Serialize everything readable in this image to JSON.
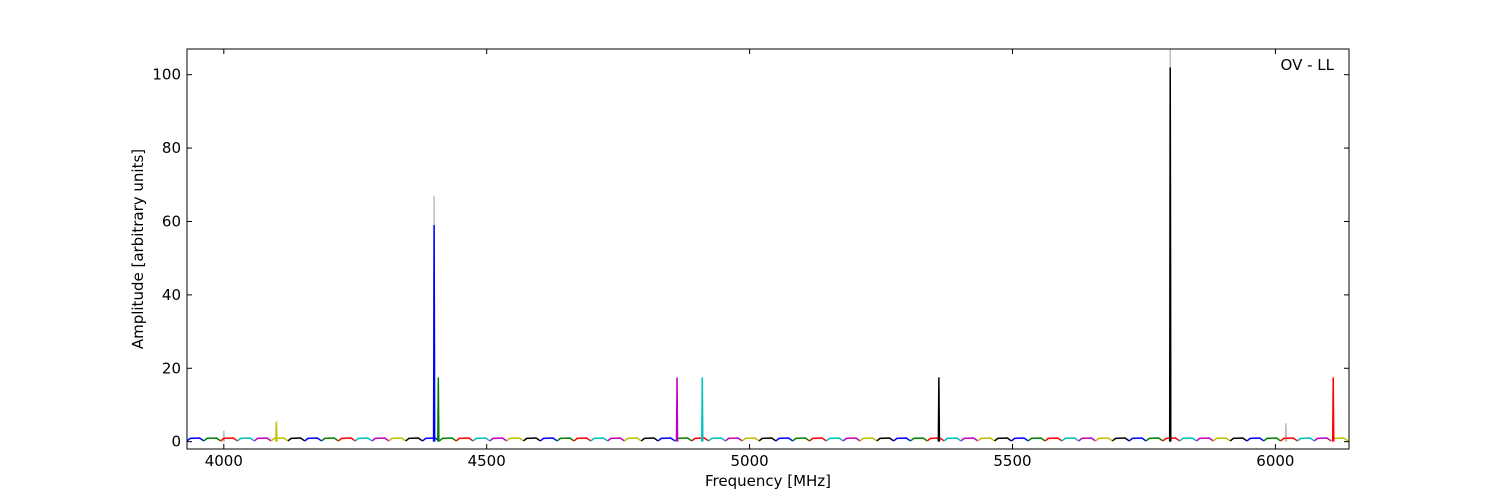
{
  "chart_data": {
    "type": "line",
    "xlabel": "Frequency [MHz]",
    "ylabel": "Amplitude [arbitrary units]",
    "annotation": "OV - LL",
    "xlim": [
      3930,
      6140
    ],
    "ylim": [
      -2,
      107
    ],
    "xticks": [
      4000,
      4500,
      5000,
      5500,
      6000
    ],
    "yticks": [
      0,
      20,
      40,
      60,
      80,
      100
    ],
    "series": [
      {
        "color": "#bfbfbf",
        "x": [
          4399,
          4400,
          4401
        ],
        "values": [
          0,
          67,
          0
        ]
      },
      {
        "color": "#bfbfbf",
        "x": [
          5799,
          5800,
          5801
        ],
        "values": [
          0,
          107,
          0
        ]
      },
      {
        "color": "#bfbfbf",
        "x": [
          3999,
          4000,
          4001
        ],
        "values": [
          0,
          3,
          0
        ]
      },
      {
        "color": "#bfbfbf",
        "x": [
          6019,
          6020,
          6021
        ],
        "values": [
          0,
          5,
          0
        ]
      },
      {
        "color": "#0000ff",
        "x": [
          3930,
          3936,
          3954,
          3962
        ],
        "values": [
          0.2,
          0.9,
          1,
          0.2
        ]
      },
      {
        "color": "#008000",
        "x": [
          3962,
          3968,
          3986,
          3994
        ],
        "values": [
          0.2,
          0.9,
          1,
          0.2
        ]
      },
      {
        "color": "#ff0000",
        "x": [
          3994,
          4000,
          4018,
          4026
        ],
        "values": [
          0.2,
          0.9,
          1,
          0.2
        ]
      },
      {
        "color": "#00bfbf",
        "x": [
          4026,
          4032,
          4050,
          4058
        ],
        "values": [
          0.2,
          0.9,
          1,
          0.2
        ]
      },
      {
        "color": "#bf00bf",
        "x": [
          4058,
          4064,
          4082,
          4090
        ],
        "values": [
          0.2,
          0.9,
          1,
          0.2
        ]
      },
      {
        "color": "#bfbf00",
        "x": [
          4090,
          4096,
          4114,
          4122
        ],
        "values": [
          0.2,
          0.9,
          1,
          0.2
        ]
      },
      {
        "color": "#000000",
        "x": [
          4122,
          4128,
          4146,
          4154
        ],
        "values": [
          0.2,
          0.9,
          1,
          0.2
        ]
      },
      {
        "color": "#0000ff",
        "x": [
          4154,
          4160,
          4178,
          4186
        ],
        "values": [
          0.2,
          0.9,
          1,
          0.2
        ]
      },
      {
        "color": "#008000",
        "x": [
          4186,
          4192,
          4210,
          4218
        ],
        "values": [
          0.2,
          0.9,
          1,
          0.2
        ]
      },
      {
        "color": "#ff0000",
        "x": [
          4218,
          4224,
          4242,
          4250
        ],
        "values": [
          0.2,
          0.9,
          1,
          0.2
        ]
      },
      {
        "color": "#00bfbf",
        "x": [
          4250,
          4256,
          4274,
          4282
        ],
        "values": [
          0.2,
          0.9,
          1,
          0.2
        ]
      },
      {
        "color": "#bf00bf",
        "x": [
          4282,
          4288,
          4306,
          4314
        ],
        "values": [
          0.2,
          0.9,
          1,
          0.2
        ]
      },
      {
        "color": "#bfbf00",
        "x": [
          4314,
          4320,
          4338,
          4346
        ],
        "values": [
          0.2,
          0.9,
          1,
          0.2
        ]
      },
      {
        "color": "#000000",
        "x": [
          4346,
          4352,
          4370,
          4378
        ],
        "values": [
          0.2,
          0.9,
          1,
          0.2
        ]
      },
      {
        "color": "#0000ff",
        "x": [
          4378,
          4384,
          4402,
          4410
        ],
        "values": [
          0.2,
          0.9,
          1,
          0.2
        ]
      },
      {
        "color": "#008000",
        "x": [
          4410,
          4416,
          4434,
          4442
        ],
        "values": [
          0.2,
          0.9,
          1,
          0.2
        ]
      },
      {
        "color": "#ff0000",
        "x": [
          4442,
          4448,
          4466,
          4474
        ],
        "values": [
          0.2,
          0.9,
          1,
          0.2
        ]
      },
      {
        "color": "#00bfbf",
        "x": [
          4474,
          4480,
          4498,
          4506
        ],
        "values": [
          0.2,
          0.9,
          1,
          0.2
        ]
      },
      {
        "color": "#bf00bf",
        "x": [
          4506,
          4512,
          4530,
          4538
        ],
        "values": [
          0.2,
          0.9,
          1,
          0.2
        ]
      },
      {
        "color": "#bfbf00",
        "x": [
          4538,
          4544,
          4562,
          4570
        ],
        "values": [
          0.2,
          0.9,
          1,
          0.2
        ]
      },
      {
        "color": "#000000",
        "x": [
          4570,
          4576,
          4594,
          4602
        ],
        "values": [
          0.2,
          0.9,
          1,
          0.2
        ]
      },
      {
        "color": "#0000ff",
        "x": [
          4602,
          4608,
          4626,
          4634
        ],
        "values": [
          0.2,
          0.9,
          1,
          0.2
        ]
      },
      {
        "color": "#008000",
        "x": [
          4634,
          4640,
          4658,
          4666
        ],
        "values": [
          0.2,
          0.9,
          1,
          0.2
        ]
      },
      {
        "color": "#ff0000",
        "x": [
          4666,
          4672,
          4690,
          4698
        ],
        "values": [
          0.2,
          0.9,
          1,
          0.2
        ]
      },
      {
        "color": "#00bfbf",
        "x": [
          4698,
          4704,
          4722,
          4730
        ],
        "values": [
          0.2,
          0.9,
          1,
          0.2
        ]
      },
      {
        "color": "#bf00bf",
        "x": [
          4730,
          4736,
          4754,
          4762
        ],
        "values": [
          0.2,
          0.9,
          1,
          0.2
        ]
      },
      {
        "color": "#bfbf00",
        "x": [
          4762,
          4768,
          4786,
          4794
        ],
        "values": [
          0.2,
          0.9,
          1,
          0.2
        ]
      },
      {
        "color": "#000000",
        "x": [
          4794,
          4800,
          4818,
          4826
        ],
        "values": [
          0.2,
          0.9,
          1,
          0.2
        ]
      },
      {
        "color": "#0000ff",
        "x": [
          4826,
          4832,
          4850,
          4858
        ],
        "values": [
          0.2,
          0.9,
          1,
          0.2
        ]
      },
      {
        "color": "#008000",
        "x": [
          4858,
          4864,
          4882,
          4890
        ],
        "values": [
          0.2,
          0.9,
          1,
          0.2
        ]
      },
      {
        "color": "#ff0000",
        "x": [
          4890,
          4896,
          4914,
          4922
        ],
        "values": [
          0.2,
          0.9,
          1,
          0.2
        ]
      },
      {
        "color": "#00bfbf",
        "x": [
          4922,
          4928,
          4946,
          4954
        ],
        "values": [
          0.2,
          0.9,
          1,
          0.2
        ]
      },
      {
        "color": "#bf00bf",
        "x": [
          4954,
          4960,
          4978,
          4986
        ],
        "values": [
          0.2,
          0.9,
          1,
          0.2
        ]
      },
      {
        "color": "#bfbf00",
        "x": [
          4986,
          4992,
          5010,
          5018
        ],
        "values": [
          0.2,
          0.9,
          1,
          0.2
        ]
      },
      {
        "color": "#000000",
        "x": [
          5018,
          5024,
          5042,
          5050
        ],
        "values": [
          0.2,
          0.9,
          1,
          0.2
        ]
      },
      {
        "color": "#0000ff",
        "x": [
          5050,
          5056,
          5074,
          5082
        ],
        "values": [
          0.2,
          0.9,
          1,
          0.2
        ]
      },
      {
        "color": "#008000",
        "x": [
          5082,
          5088,
          5106,
          5114
        ],
        "values": [
          0.2,
          0.9,
          1,
          0.2
        ]
      },
      {
        "color": "#ff0000",
        "x": [
          5114,
          5120,
          5138,
          5146
        ],
        "values": [
          0.2,
          0.9,
          1,
          0.2
        ]
      },
      {
        "color": "#00bfbf",
        "x": [
          5146,
          5152,
          5170,
          5178
        ],
        "values": [
          0.2,
          0.9,
          1,
          0.2
        ]
      },
      {
        "color": "#bf00bf",
        "x": [
          5178,
          5184,
          5202,
          5210
        ],
        "values": [
          0.2,
          0.9,
          1,
          0.2
        ]
      },
      {
        "color": "#bfbf00",
        "x": [
          5210,
          5216,
          5234,
          5242
        ],
        "values": [
          0.2,
          0.9,
          1,
          0.2
        ]
      },
      {
        "color": "#000000",
        "x": [
          5242,
          5248,
          5266,
          5274
        ],
        "values": [
          0.2,
          0.9,
          1,
          0.2
        ]
      },
      {
        "color": "#0000ff",
        "x": [
          5274,
          5280,
          5298,
          5306
        ],
        "values": [
          0.2,
          0.9,
          1,
          0.2
        ]
      },
      {
        "color": "#008000",
        "x": [
          5306,
          5312,
          5330,
          5338
        ],
        "values": [
          0.2,
          0.9,
          1,
          0.2
        ]
      },
      {
        "color": "#ff0000",
        "x": [
          5338,
          5344,
          5362,
          5370
        ],
        "values": [
          0.2,
          0.9,
          1,
          0.2
        ]
      },
      {
        "color": "#00bfbf",
        "x": [
          5370,
          5376,
          5394,
          5402
        ],
        "values": [
          0.2,
          0.9,
          1,
          0.2
        ]
      },
      {
        "color": "#bf00bf",
        "x": [
          5402,
          5408,
          5426,
          5434
        ],
        "values": [
          0.2,
          0.9,
          1,
          0.2
        ]
      },
      {
        "color": "#bfbf00",
        "x": [
          5434,
          5440,
          5458,
          5466
        ],
        "values": [
          0.2,
          0.9,
          1,
          0.2
        ]
      },
      {
        "color": "#000000",
        "x": [
          5466,
          5472,
          5490,
          5498
        ],
        "values": [
          0.2,
          0.9,
          1,
          0.2
        ]
      },
      {
        "color": "#0000ff",
        "x": [
          5498,
          5504,
          5522,
          5530
        ],
        "values": [
          0.2,
          0.9,
          1,
          0.2
        ]
      },
      {
        "color": "#008000",
        "x": [
          5530,
          5536,
          5554,
          5562
        ],
        "values": [
          0.2,
          0.9,
          1,
          0.2
        ]
      },
      {
        "color": "#ff0000",
        "x": [
          5562,
          5568,
          5586,
          5594
        ],
        "values": [
          0.2,
          0.9,
          1,
          0.2
        ]
      },
      {
        "color": "#00bfbf",
        "x": [
          5594,
          5600,
          5618,
          5626
        ],
        "values": [
          0.2,
          0.9,
          1,
          0.2
        ]
      },
      {
        "color": "#bf00bf",
        "x": [
          5626,
          5632,
          5650,
          5658
        ],
        "values": [
          0.2,
          0.9,
          1,
          0.2
        ]
      },
      {
        "color": "#bfbf00",
        "x": [
          5658,
          5664,
          5682,
          5690
        ],
        "values": [
          0.2,
          0.9,
          1,
          0.2
        ]
      },
      {
        "color": "#000000",
        "x": [
          5690,
          5696,
          5714,
          5722
        ],
        "values": [
          0.2,
          0.9,
          1,
          0.2
        ]
      },
      {
        "color": "#0000ff",
        "x": [
          5722,
          5728,
          5746,
          5754
        ],
        "values": [
          0.2,
          0.9,
          1,
          0.2
        ]
      },
      {
        "color": "#008000",
        "x": [
          5754,
          5760,
          5778,
          5786
        ],
        "values": [
          0.2,
          0.9,
          1,
          0.2
        ]
      },
      {
        "color": "#ff0000",
        "x": [
          5786,
          5792,
          5810,
          5818
        ],
        "values": [
          0.2,
          0.9,
          1,
          0.2
        ]
      },
      {
        "color": "#00bfbf",
        "x": [
          5818,
          5824,
          5842,
          5850
        ],
        "values": [
          0.2,
          0.9,
          1,
          0.2
        ]
      },
      {
        "color": "#bf00bf",
        "x": [
          5850,
          5856,
          5874,
          5882
        ],
        "values": [
          0.2,
          0.9,
          1,
          0.2
        ]
      },
      {
        "color": "#bfbf00",
        "x": [
          5882,
          5888,
          5906,
          5914
        ],
        "values": [
          0.2,
          0.9,
          1,
          0.2
        ]
      },
      {
        "color": "#000000",
        "x": [
          5914,
          5920,
          5938,
          5946
        ],
        "values": [
          0.2,
          0.9,
          1,
          0.2
        ]
      },
      {
        "color": "#0000ff",
        "x": [
          5946,
          5952,
          5970,
          5978
        ],
        "values": [
          0.2,
          0.9,
          1,
          0.2
        ]
      },
      {
        "color": "#008000",
        "x": [
          5978,
          5984,
          6002,
          6010
        ],
        "values": [
          0.2,
          0.9,
          1,
          0.2
        ]
      },
      {
        "color": "#ff0000",
        "x": [
          6010,
          6016,
          6034,
          6042
        ],
        "values": [
          0.2,
          0.9,
          1,
          0.2
        ]
      },
      {
        "color": "#00bfbf",
        "x": [
          6042,
          6048,
          6066,
          6074
        ],
        "values": [
          0.2,
          0.9,
          1,
          0.2
        ]
      },
      {
        "color": "#bf00bf",
        "x": [
          6074,
          6080,
          6098,
          6106
        ],
        "values": [
          0.2,
          0.9,
          1,
          0.2
        ]
      },
      {
        "color": "#bfbf00",
        "x": [
          6106,
          6112,
          6130,
          6138
        ],
        "values": [
          0.2,
          0.9,
          1,
          0.2
        ]
      },
      {
        "color": "#0000ff",
        "x": [
          4399,
          4400,
          4401
        ],
        "values": [
          0,
          59,
          0
        ]
      },
      {
        "color": "#008000",
        "x": [
          4407,
          4408,
          4409
        ],
        "values": [
          0,
          17.5,
          0
        ]
      },
      {
        "color": "#bfbf00",
        "x": [
          4099,
          4100,
          4101
        ],
        "values": [
          0,
          5.5,
          0
        ]
      },
      {
        "color": "#bf00bf",
        "x": [
          4861,
          4862,
          4863
        ],
        "values": [
          0,
          17.5,
          0
        ]
      },
      {
        "color": "#00bfbf",
        "x": [
          4909,
          4910,
          4911
        ],
        "values": [
          0,
          17.5,
          0
        ]
      },
      {
        "color": "#000000",
        "x": [
          5359,
          5360,
          5361
        ],
        "values": [
          0,
          17.5,
          0
        ]
      },
      {
        "color": "#000000",
        "x": [
          5799,
          5800,
          5801
        ],
        "values": [
          0,
          102,
          0
        ]
      },
      {
        "color": "#ff0000",
        "x": [
          6109,
          6110,
          6111
        ],
        "values": [
          0,
          17.5,
          0
        ]
      }
    ]
  }
}
